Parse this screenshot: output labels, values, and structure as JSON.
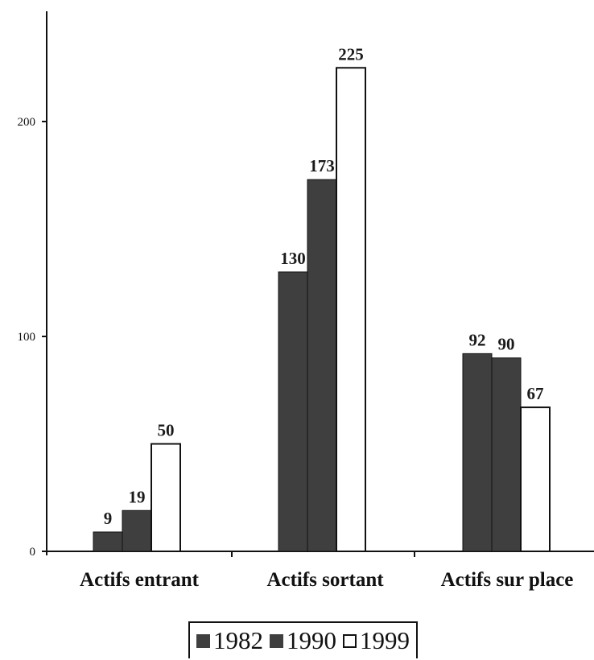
{
  "chart_data": {
    "type": "bar",
    "categories": [
      "Actifs entrant",
      "Actifs sortant",
      "Actifs sur place"
    ],
    "series": [
      {
        "name": "1982",
        "values": [
          9,
          130,
          92
        ],
        "color": "#3f3f3f"
      },
      {
        "name": "1990",
        "values": [
          19,
          173,
          90
        ],
        "color": "#3f3f3f"
      },
      {
        "name": "1999",
        "values": [
          50,
          225,
          67
        ],
        "color": "#ffffff"
      }
    ],
    "y_ticks": [
      "0",
      "100",
      "200"
    ],
    "ylim": [
      0,
      250
    ],
    "legend_position": "bottom",
    "grid": false
  }
}
